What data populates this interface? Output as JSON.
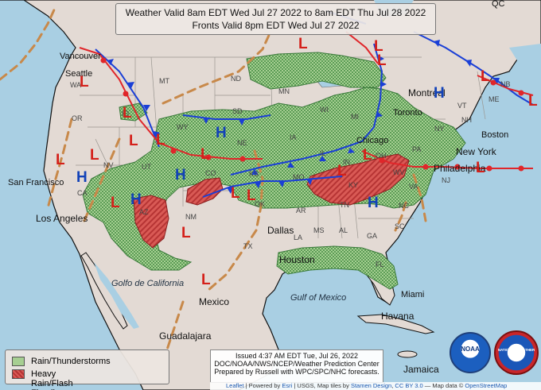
{
  "title": {
    "line1": "Weather Valid 8am EDT Wed Jul 27 2022 to 8am EDT Thu Jul 28 2022",
    "line2": "Fronts Valid 8pm EDT Wed Jul 27 2022"
  },
  "legend": {
    "items": [
      {
        "label": "Rain/Thunderstorms",
        "color": "#6cb46c"
      },
      {
        "label": "Heavy Rain/Flash Flooding Possible",
        "color": "#d94848"
      }
    ]
  },
  "issued": {
    "line1": "Issued 4:37 AM EDT Tue, Jul 26, 2022",
    "line2": "DOC/NOAA/NWS/NCEP/Weather Prediction Center",
    "line3": "Prepared by Russell with WPC/SPC/NHC forecasts."
  },
  "attribution": {
    "leaflet": "Leaflet",
    "powered": "| Powered by",
    "esri": "Esri",
    "rest": "| USGS, Map tiles by",
    "stamen": "Stamen Design",
    "cc": "CC BY 3.0",
    "mapdata": "— Map data ©",
    "osm": "OpenStreetMap"
  },
  "cities": {
    "vancouver": "Vancouver",
    "seattle": "Seattle",
    "san_francisco": "San Francisco",
    "los_angeles": "Los Angeles",
    "dallas": "Dallas",
    "houston": "Houston",
    "chicago": "Chicago",
    "toronto": "Toronto",
    "montreal": "Montreal",
    "boston": "Boston",
    "new_york": "New York",
    "philadelphia": "Philadelphia",
    "miami": "Miami",
    "havana": "Havana",
    "jamaica": "Jamaica",
    "mexico": "Mexico",
    "guadalajara": "Guadalajara",
    "gulf_california": "Golfo de California",
    "gulf_mexico": "Gulf of Mexico",
    "qc": "QC"
  },
  "states": [
    "WA",
    "OR",
    "CA",
    "NV",
    "ID",
    "MT",
    "WY",
    "UT",
    "AZ",
    "NM",
    "CO",
    "ND",
    "SD",
    "NE",
    "KS",
    "OK",
    "TX",
    "MN",
    "IA",
    "MO",
    "AR",
    "LA",
    "WI",
    "IL",
    "MS",
    "AL",
    "GA",
    "FL",
    "SC",
    "NC",
    "TN",
    "KY",
    "IN",
    "OH",
    "MI",
    "WV",
    "VA",
    "PA",
    "NY",
    "VT",
    "NH",
    "ME",
    "NB",
    "NJ"
  ],
  "pressure_systems": {
    "highs": [
      "H",
      "H",
      "H",
      "H",
      "H",
      "H"
    ],
    "lows": [
      "L",
      "L",
      "L",
      "L",
      "L",
      "L",
      "L",
      "L",
      "L",
      "L",
      "L",
      "L",
      "L",
      "L",
      "L",
      "L",
      "L",
      "L",
      "L",
      "L"
    ]
  },
  "logos": {
    "noaa": "NOAA",
    "nws": "NATIONAL WEATHER SERVICE"
  },
  "colors": {
    "water": "#a9cfe3",
    "land": "#e3dad4",
    "rain": "#6cb46c",
    "heavy_rain": "#d94848",
    "cold_front": "#1a3fd6",
    "warm_front": "#e0262a",
    "trough": "#c8894a",
    "high": "#1242b8",
    "low": "#d4201a"
  }
}
